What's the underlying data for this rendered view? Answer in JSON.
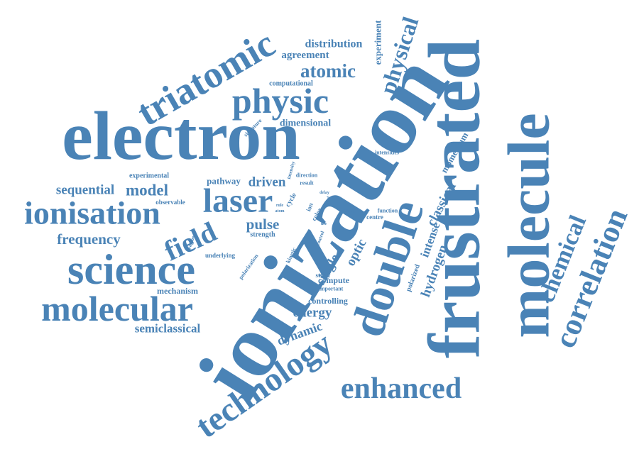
{
  "words": [
    {
      "text": "ionization"
    },
    {
      "text": "electron"
    },
    {
      "text": "frustrated"
    },
    {
      "text": "molecule"
    },
    {
      "text": "double"
    },
    {
      "text": "correlation"
    },
    {
      "text": "chemical"
    },
    {
      "text": "science"
    },
    {
      "text": "molecular"
    },
    {
      "text": "ionisation"
    },
    {
      "text": "technology"
    },
    {
      "text": "enhanced"
    },
    {
      "text": "triatomic"
    },
    {
      "text": "physic"
    },
    {
      "text": "laser"
    },
    {
      "text": "field"
    },
    {
      "text": "physical"
    },
    {
      "text": "atomic"
    },
    {
      "text": "agreement"
    },
    {
      "text": "distribution"
    },
    {
      "text": "experiment"
    },
    {
      "text": "computational"
    },
    {
      "text": "dimensional"
    },
    {
      "text": "sequential"
    },
    {
      "text": "model"
    },
    {
      "text": "driven"
    },
    {
      "text": "pathway"
    },
    {
      "text": "experimental"
    },
    {
      "text": "observable"
    },
    {
      "text": "frequency"
    },
    {
      "text": "pulse"
    },
    {
      "text": "strength"
    },
    {
      "text": "mechanism"
    },
    {
      "text": "semiclassical"
    },
    {
      "text": "energy"
    },
    {
      "text": "controlling"
    },
    {
      "text": "compute"
    },
    {
      "text": "important"
    },
    {
      "text": "dynamic"
    },
    {
      "text": "single"
    },
    {
      "text": "optic"
    },
    {
      "text": "intense"
    },
    {
      "text": "classical"
    },
    {
      "text": "hydrogen"
    },
    {
      "text": "polarized"
    },
    {
      "text": "momentum"
    },
    {
      "text": "intensities"
    },
    {
      "text": "centre"
    },
    {
      "text": "function"
    },
    {
      "text": "study"
    },
    {
      "text": "underlying"
    },
    {
      "text": "polarization"
    },
    {
      "text": "kinetic"
    },
    {
      "text": "signature"
    },
    {
      "text": "intensity"
    },
    {
      "text": "direction"
    },
    {
      "text": "result"
    },
    {
      "text": "cycle"
    },
    {
      "text": "ion"
    },
    {
      "text": "color"
    },
    {
      "text": "good"
    },
    {
      "text": "delay"
    },
    {
      "text": "strong"
    },
    {
      "text": "fragment"
    },
    {
      "text": "control"
    },
    {
      "text": "rule"
    },
    {
      "text": "atom"
    },
    {
      "text": "use"
    }
  ]
}
